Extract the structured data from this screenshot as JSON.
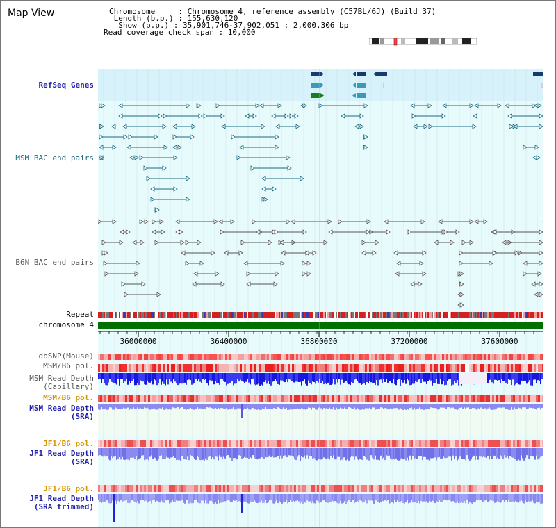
{
  "map_title": "Map View",
  "header": {
    "chromosome_line": "Chromosome     : Chromosome 4, reference assembly (C57BL/6J) (Build 37)",
    "length_line": " Length (b.p.) : 155,630,120",
    "show_line": "  Show (b.p.) : 35,901,746-37,902,051 : 2,000,306 bp",
    "coverage_line": "Read coverage check span : 10,000"
  },
  "tracks": {
    "refseq": "RefSeq Genes",
    "msm_bac": "MSM BAC end pairs",
    "b6n_bac": "B6N BAC end pairs",
    "repeat": "Repeat",
    "chromosome": "chromosome 4",
    "dbsnp": "dbSNP(Mouse)",
    "msm_pol": "MSM/B6 pol.",
    "msm_depth_cap_1": "MSM Read Depth",
    "msm_depth_cap_2": "(Capillary)",
    "msm_pol2": "MSM/B6 pol.",
    "msm_depth_sra_1": "MSM Read Depth",
    "msm_depth_sra_2": "(SRA)",
    "jf1_pol": "JF1/B6 pol.",
    "jf1_depth_sra_1": "JF1 Read Depth",
    "jf1_depth_sra_2": "(SRA)",
    "jf1_pol2": "JF1/B6 pol.",
    "jf1_depth_trim_1": "JF1 Read Depth",
    "jf1_depth_trim_2": "(SRA trimmed)"
  },
  "axis": {
    "ticks": [
      "36000000",
      "36400000",
      "36800000",
      "37200000",
      "37600000"
    ]
  },
  "colors": {
    "refseq_bg": "#d7f2fb",
    "track_bg": "#e8fbfc",
    "msm_feature": "#1c6a80",
    "b6n_feature": "#555555",
    "chromosome_bar": "#007000",
    "depth_blue": "#2222dd",
    "depth_light": "#8a8af0",
    "pol_red": "#ee3333"
  }
}
